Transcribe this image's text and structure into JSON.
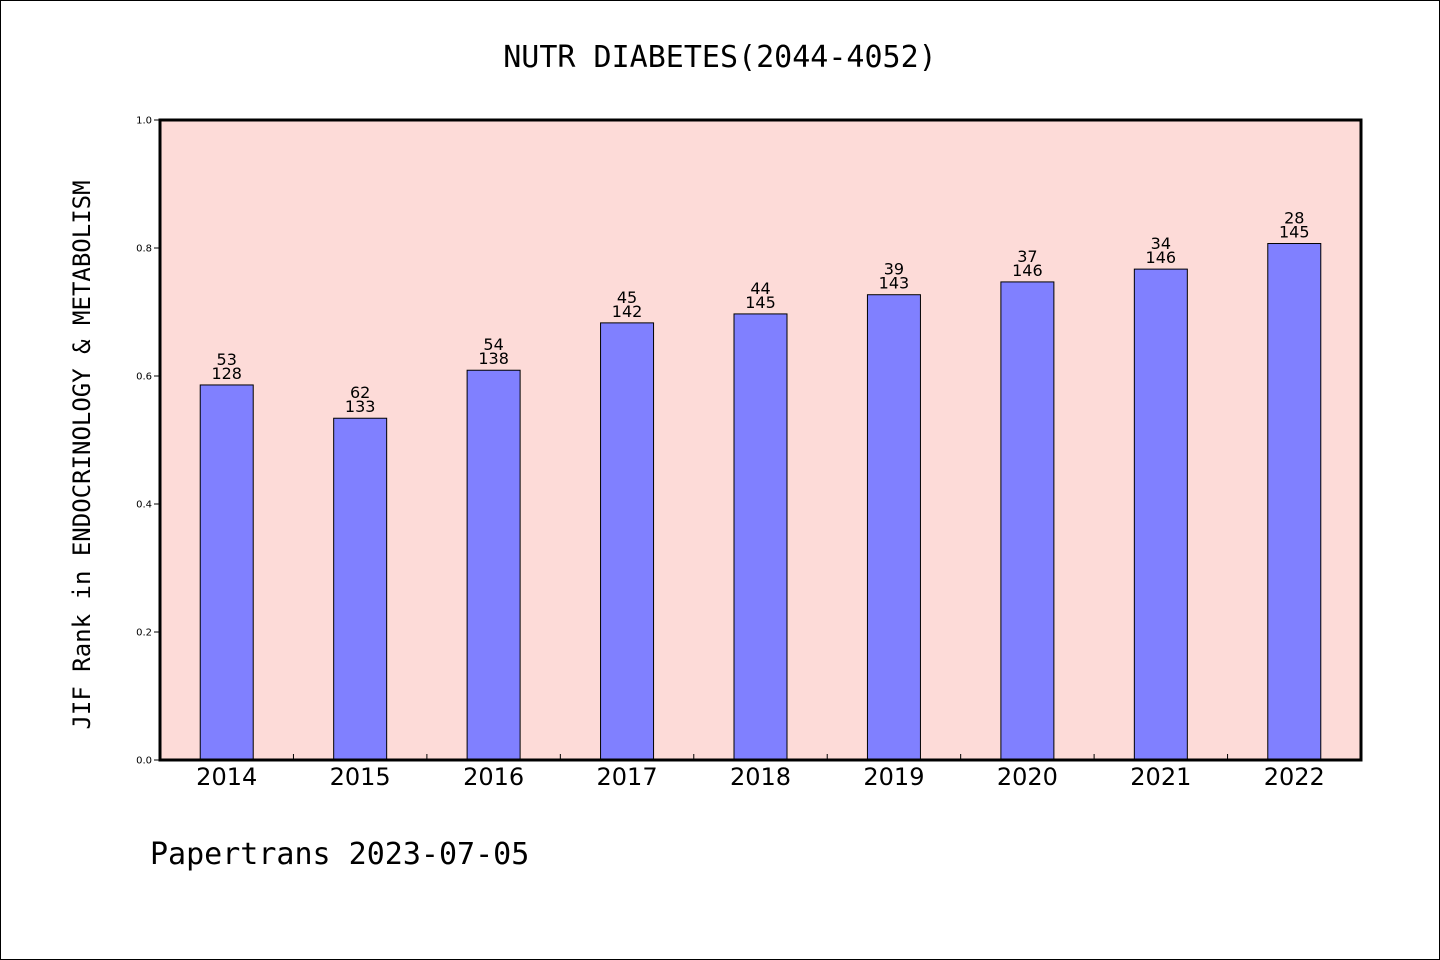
{
  "chart_data": {
    "type": "bar",
    "title": "NUTR DIABETES(2044-4052)",
    "xlabel": "",
    "ylabel": "JIF Rank in ENDOCRINOLOGY & METABOLISM",
    "ylim": [
      0,
      1.0
    ],
    "yticks": [
      "0.0",
      "0.2",
      "0.4",
      "0.6",
      "0.8",
      "1.0"
    ],
    "categories": [
      "2014",
      "2015",
      "2016",
      "2017",
      "2018",
      "2019",
      "2020",
      "2021",
      "2022"
    ],
    "values": [
      0.586,
      0.534,
      0.609,
      0.683,
      0.697,
      0.727,
      0.747,
      0.767,
      0.807
    ],
    "rank": [
      "53",
      "62",
      "54",
      "45",
      "44",
      "39",
      "37",
      "34",
      "28"
    ],
    "total": [
      "128",
      "133",
      "138",
      "142",
      "145",
      "143",
      "146",
      "146",
      "145"
    ],
    "grid": false,
    "colors": {
      "bar": "#8080ff",
      "plot_background": "#fddbd8",
      "bar_edge": "#000000"
    }
  },
  "footer": "Papertrans 2023-07-05"
}
